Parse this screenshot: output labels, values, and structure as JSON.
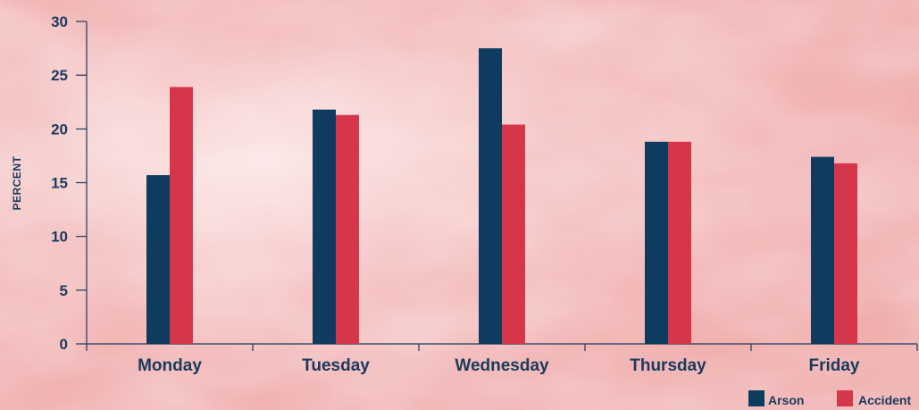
{
  "chart_data": {
    "type": "bar",
    "ylabel": "PERCENT",
    "xlabel": "",
    "ylim": [
      0,
      30
    ],
    "yticks": [
      0,
      5,
      10,
      15,
      20,
      25,
      30
    ],
    "grid": false,
    "legend_position": "bottom-right",
    "categories": [
      "Monday",
      "Tuesday",
      "Wednesday",
      "Thursday",
      "Friday"
    ],
    "series": [
      {
        "name": "Arson",
        "color": "#0f3b5f",
        "values": [
          15.7,
          21.8,
          27.5,
          18.8,
          17.4
        ]
      },
      {
        "name": "Accident",
        "color": "#d6364a",
        "values": [
          23.9,
          21.3,
          20.4,
          18.8,
          16.8
        ]
      }
    ]
  }
}
